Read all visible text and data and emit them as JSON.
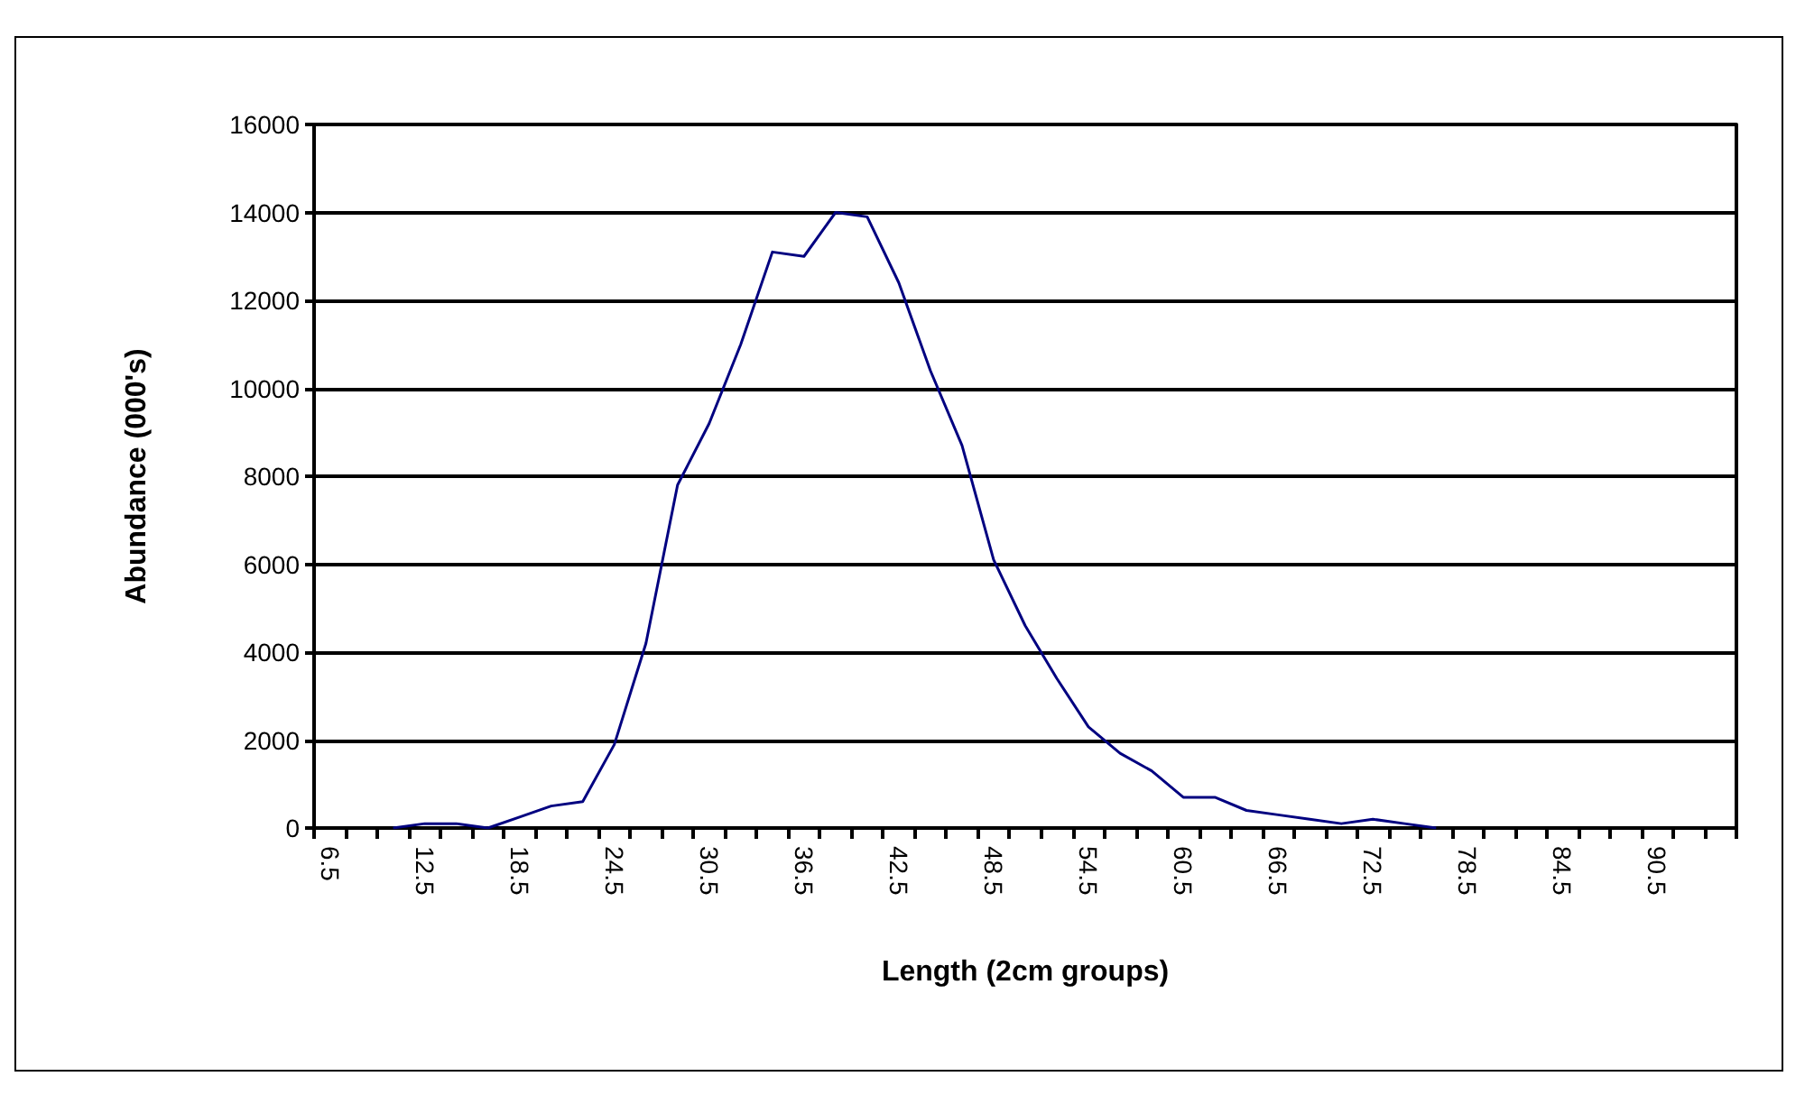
{
  "chart_data": {
    "type": "line",
    "xlabel": "Length (2cm groups)",
    "ylabel": "Abundance (000's)",
    "categories": [
      "6.5",
      null,
      null,
      "12.5",
      null,
      null,
      "18.5",
      null,
      null,
      "24.5",
      null,
      null,
      "30.5",
      null,
      null,
      "36.5",
      null,
      null,
      "42.5",
      null,
      null,
      "48.5",
      null,
      null,
      "54.5",
      null,
      null,
      "60.5",
      null,
      null,
      "66.5",
      null,
      null,
      "72.5",
      null,
      null,
      "78.5",
      null,
      null,
      "84.5",
      null,
      null,
      "90.5",
      null,
      null
    ],
    "series": [
      {
        "color": "#000080",
        "values": [
          null,
          null,
          0,
          100,
          100,
          0,
          250,
          500,
          600,
          1900,
          4200,
          7800,
          9200,
          11000,
          13100,
          13000,
          14000,
          13900,
          12400,
          10400,
          8700,
          6100,
          4600,
          3400,
          2300,
          1700,
          1300,
          700,
          700,
          400,
          300,
          200,
          100,
          200,
          100,
          0,
          null,
          null,
          null,
          null,
          null,
          null,
          null,
          null,
          null
        ]
      }
    ],
    "ylim": [
      0,
      16000
    ],
    "yticks": [
      0,
      2000,
      4000,
      6000,
      8000,
      10000,
      12000,
      14000,
      16000
    ],
    "grid": "y",
    "marker": "none",
    "line_style": "solid"
  }
}
